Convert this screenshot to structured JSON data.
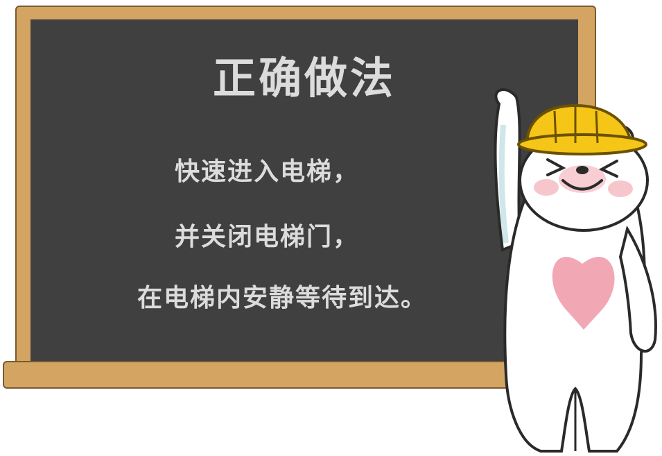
{
  "board": {
    "title": "正确做法",
    "lines": [
      "快速进入电梯，",
      "并关闭电梯门，",
      "在电梯内安静等待到达。"
    ]
  },
  "colors": {
    "board": "#404040",
    "frame": "#d4a463",
    "chalk": "#dcdcdc",
    "hat": "#f5c518",
    "heart": "#f2a8b4"
  },
  "icons": [
    "bear-mascot-icon",
    "hard-hat-icon",
    "heart-icon"
  ]
}
